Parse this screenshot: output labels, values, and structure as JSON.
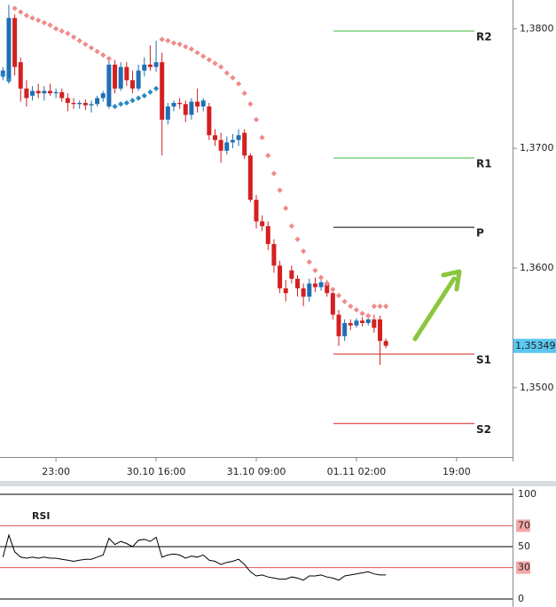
{
  "chart_data": [
    {
      "type": "candlestick",
      "x": [
        -9,
        -8,
        -7,
        -6,
        -5,
        -4,
        -3,
        -2,
        -1,
        0,
        1,
        2,
        3,
        4,
        5,
        6,
        7,
        8,
        9,
        10,
        11,
        12,
        13,
        14,
        15,
        16,
        17,
        18,
        19,
        20,
        21,
        22,
        23,
        24,
        25,
        26,
        27,
        28,
        29,
        30,
        31,
        32,
        33,
        34,
        35,
        36,
        37,
        38,
        39,
        40,
        41,
        42,
        43,
        44,
        45,
        46,
        47,
        48,
        49,
        50,
        51,
        52,
        53,
        54,
        55,
        56
      ],
      "open": [
        1.3761,
        1.3757,
        1.3809,
        1.3772,
        1.375,
        1.3744,
        1.3748,
        1.3746,
        1.3748,
        1.3746,
        1.3747,
        1.3742,
        1.3738,
        1.3737,
        1.3738,
        1.3736,
        1.3737,
        1.3742,
        1.3735,
        1.377,
        1.375,
        1.3768,
        1.3757,
        1.375,
        1.3765,
        1.377,
        1.3768,
        1.3772,
        1.3724,
        1.3735,
        1.3738,
        1.3737,
        1.3728,
        1.3739,
        1.3735,
        1.3735,
        1.3711,
        1.3707,
        1.3698,
        1.3705,
        1.3707,
        1.3713,
        1.3694,
        1.3657,
        1.3639,
        1.3635,
        1.362,
        1.3602,
        1.3583,
        1.3598,
        1.3591,
        1.3583,
        1.3576,
        1.3587,
        1.3584,
        1.3588,
        1.3579,
        1.3561,
        1.3543,
        1.3554,
        1.3552,
        1.3556,
        1.3554,
        1.3557,
        1.3557,
        1.3539
      ],
      "high": [
        1.3768,
        1.382,
        1.3812,
        1.3776,
        1.3757,
        1.3752,
        1.3754,
        1.3752,
        1.3754,
        1.375,
        1.375,
        1.3746,
        1.3742,
        1.374,
        1.3741,
        1.374,
        1.3744,
        1.3748,
        1.3776,
        1.3774,
        1.3772,
        1.3772,
        1.3765,
        1.377,
        1.3776,
        1.3786,
        1.379,
        1.378,
        1.3738,
        1.374,
        1.3742,
        1.374,
        1.3742,
        1.375,
        1.3742,
        1.3738,
        1.3716,
        1.3713,
        1.371,
        1.3712,
        1.3716,
        1.3716,
        1.3696,
        1.3661,
        1.3644,
        1.3639,
        1.3624,
        1.3606,
        1.359,
        1.3602,
        1.3594,
        1.3587,
        1.3591,
        1.3592,
        1.3591,
        1.359,
        1.3583,
        1.3565,
        1.3557,
        1.3557,
        1.3558,
        1.3559,
        1.356,
        1.3561,
        1.356,
        1.3541
      ],
      "low": [
        1.3757,
        1.3754,
        1.3761,
        1.3739,
        1.3735,
        1.374,
        1.3742,
        1.374,
        1.3744,
        1.3742,
        1.3739,
        1.3731,
        1.3733,
        1.3733,
        1.3732,
        1.373,
        1.3735,
        1.3739,
        1.3733,
        1.3746,
        1.3748,
        1.3752,
        1.3746,
        1.3748,
        1.376,
        1.3765,
        1.3764,
        1.3694,
        1.372,
        1.3731,
        1.3733,
        1.3722,
        1.3724,
        1.373,
        1.3731,
        1.3707,
        1.3702,
        1.3688,
        1.3695,
        1.37,
        1.3702,
        1.3691,
        1.3655,
        1.3633,
        1.3631,
        1.3615,
        1.3596,
        1.3579,
        1.3572,
        1.3587,
        1.3576,
        1.3568,
        1.3572,
        1.358,
        1.3581,
        1.3576,
        1.3557,
        1.3535,
        1.3539,
        1.3548,
        1.355,
        1.3551,
        1.3552,
        1.3546,
        1.3519,
        1.3533
      ],
      "close": [
        1.3765,
        1.3809,
        1.3768,
        1.375,
        1.3742,
        1.3748,
        1.3746,
        1.3748,
        1.3746,
        1.3747,
        1.3742,
        1.3738,
        1.3737,
        1.3738,
        1.3736,
        1.3737,
        1.3742,
        1.3746,
        1.377,
        1.375,
        1.3768,
        1.3757,
        1.375,
        1.3765,
        1.377,
        1.3768,
        1.3772,
        1.3724,
        1.3735,
        1.3738,
        1.3737,
        1.3728,
        1.3739,
        1.3735,
        1.374,
        1.3711,
        1.3707,
        1.3698,
        1.3705,
        1.3707,
        1.3711,
        1.3694,
        1.3657,
        1.3639,
        1.3635,
        1.362,
        1.3602,
        1.3583,
        1.3579,
        1.3591,
        1.3583,
        1.3576,
        1.3587,
        1.3584,
        1.3588,
        1.3579,
        1.3561,
        1.3543,
        1.3554,
        1.3552,
        1.3556,
        1.3554,
        1.3557,
        1.355,
        1.3539,
        1.3535
      ],
      "up_color": "#1f6fb5",
      "down_color": "#d42020",
      "sar": {
        "values": [
          1.3761,
          1.3757,
          1.3817,
          1.3814,
          1.3811,
          1.3809,
          1.3807,
          1.3805,
          1.3803,
          1.38,
          1.3798,
          1.3796,
          1.3793,
          1.379,
          1.3787,
          1.3784,
          1.3781,
          1.3778,
          1.3775,
          1.3735,
          1.3737,
          1.3738,
          1.374,
          1.3742,
          1.3744,
          1.3747,
          1.375,
          1.3791,
          1.379,
          1.3788,
          1.3787,
          1.3785,
          1.3783,
          1.378,
          1.3777,
          1.3774,
          1.3771,
          1.3768,
          1.3763,
          1.3759,
          1.3754,
          1.3746,
          1.3737,
          1.3724,
          1.3709,
          1.3694,
          1.3679,
          1.3665,
          1.365,
          1.3635,
          1.3624,
          1.3614,
          1.3605,
          1.3598,
          1.3592,
          1.3587,
          1.3582,
          1.3577,
          1.3572,
          1.3568,
          1.3565,
          1.3562,
          1.356,
          1.3568,
          1.3568,
          1.3568
        ],
        "below_color": "#2a8ac4",
        "above_color": "#f08a8a"
      },
      "pivots": [
        {
          "label": "R2",
          "value": 1.3798,
          "color": "#3cb83c"
        },
        {
          "label": "R1",
          "value": 1.3692,
          "color": "#3cb83c"
        },
        {
          "label": "P",
          "value": 1.3634,
          "color": "#000000"
        },
        {
          "label": "S1",
          "value": 1.3528,
          "color": "#d42020"
        },
        {
          "label": "S2",
          "value": 1.347,
          "color": "#d42020"
        }
      ],
      "last_price": {
        "value": 1.35349,
        "label": "1,35349"
      },
      "xlim": [
        -9.5,
        77.5
      ],
      "xticks": [
        {
          "value": 0,
          "label": "23:00"
        },
        {
          "value": 17,
          "label": "30.10 16:00"
        },
        {
          "value": 34,
          "label": "31.10 09:00"
        },
        {
          "value": 51,
          "label": "01.11 02:00"
        },
        {
          "value": 68,
          "label": "19:00"
        }
      ],
      "ylim": [
        1.3442,
        1.3824
      ],
      "yticks": [
        {
          "value": 1.38,
          "label": "1,3800"
        },
        {
          "value": 1.37,
          "label": "1,3700"
        },
        {
          "value": 1.36,
          "label": "1,3600"
        },
        {
          "value": 1.35,
          "label": "1,3500"
        }
      ]
    },
    {
      "type": "line",
      "title": "RSI",
      "color": "#000000",
      "values": [
        40,
        61,
        45,
        40,
        39,
        40,
        39,
        40,
        39,
        39,
        38,
        37,
        36,
        37,
        38,
        38,
        40,
        42,
        58,
        52,
        55,
        53,
        50,
        56,
        57,
        55,
        59,
        40,
        42,
        43,
        42,
        39,
        41,
        40,
        42,
        37,
        36,
        33,
        35,
        36,
        38,
        33,
        26,
        22,
        23,
        21,
        20,
        19,
        19,
        21,
        20,
        18,
        22,
        22,
        23,
        21,
        20,
        18,
        22,
        23,
        24,
        25,
        26,
        24,
        23,
        23
      ],
      "ylim": [
        0,
        100
      ],
      "yticks": [
        100,
        70,
        50,
        30,
        0
      ],
      "grid_colors": [
        "#000000",
        "#e05050",
        "#000000",
        "#e05050",
        "#000000"
      ]
    }
  ]
}
